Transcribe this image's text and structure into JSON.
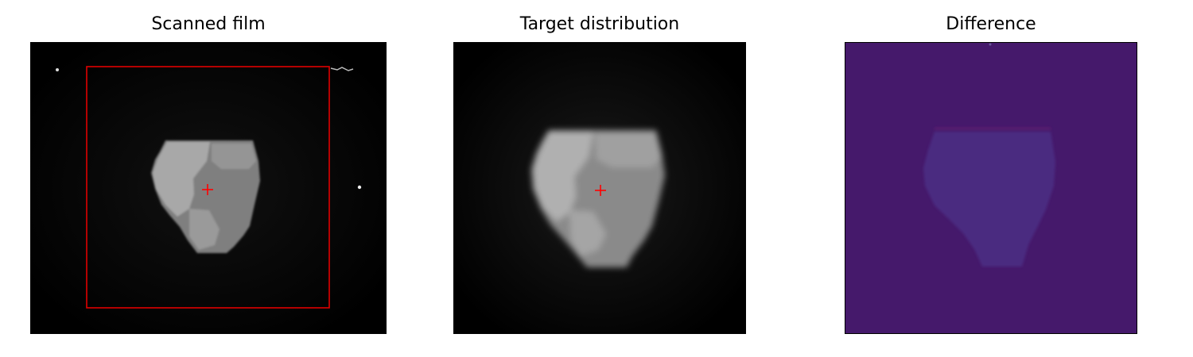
{
  "panels": [
    {
      "title": "Scanned film"
    },
    {
      "title": "Target distribution"
    },
    {
      "title": "Difference"
    }
  ],
  "colors": {
    "roi_box": "#e00000",
    "marker": "#ff0000",
    "difference_background": "#45196b",
    "difference_region": "#4a2b83"
  },
  "markers": {
    "center": "crosshair-plus"
  }
}
